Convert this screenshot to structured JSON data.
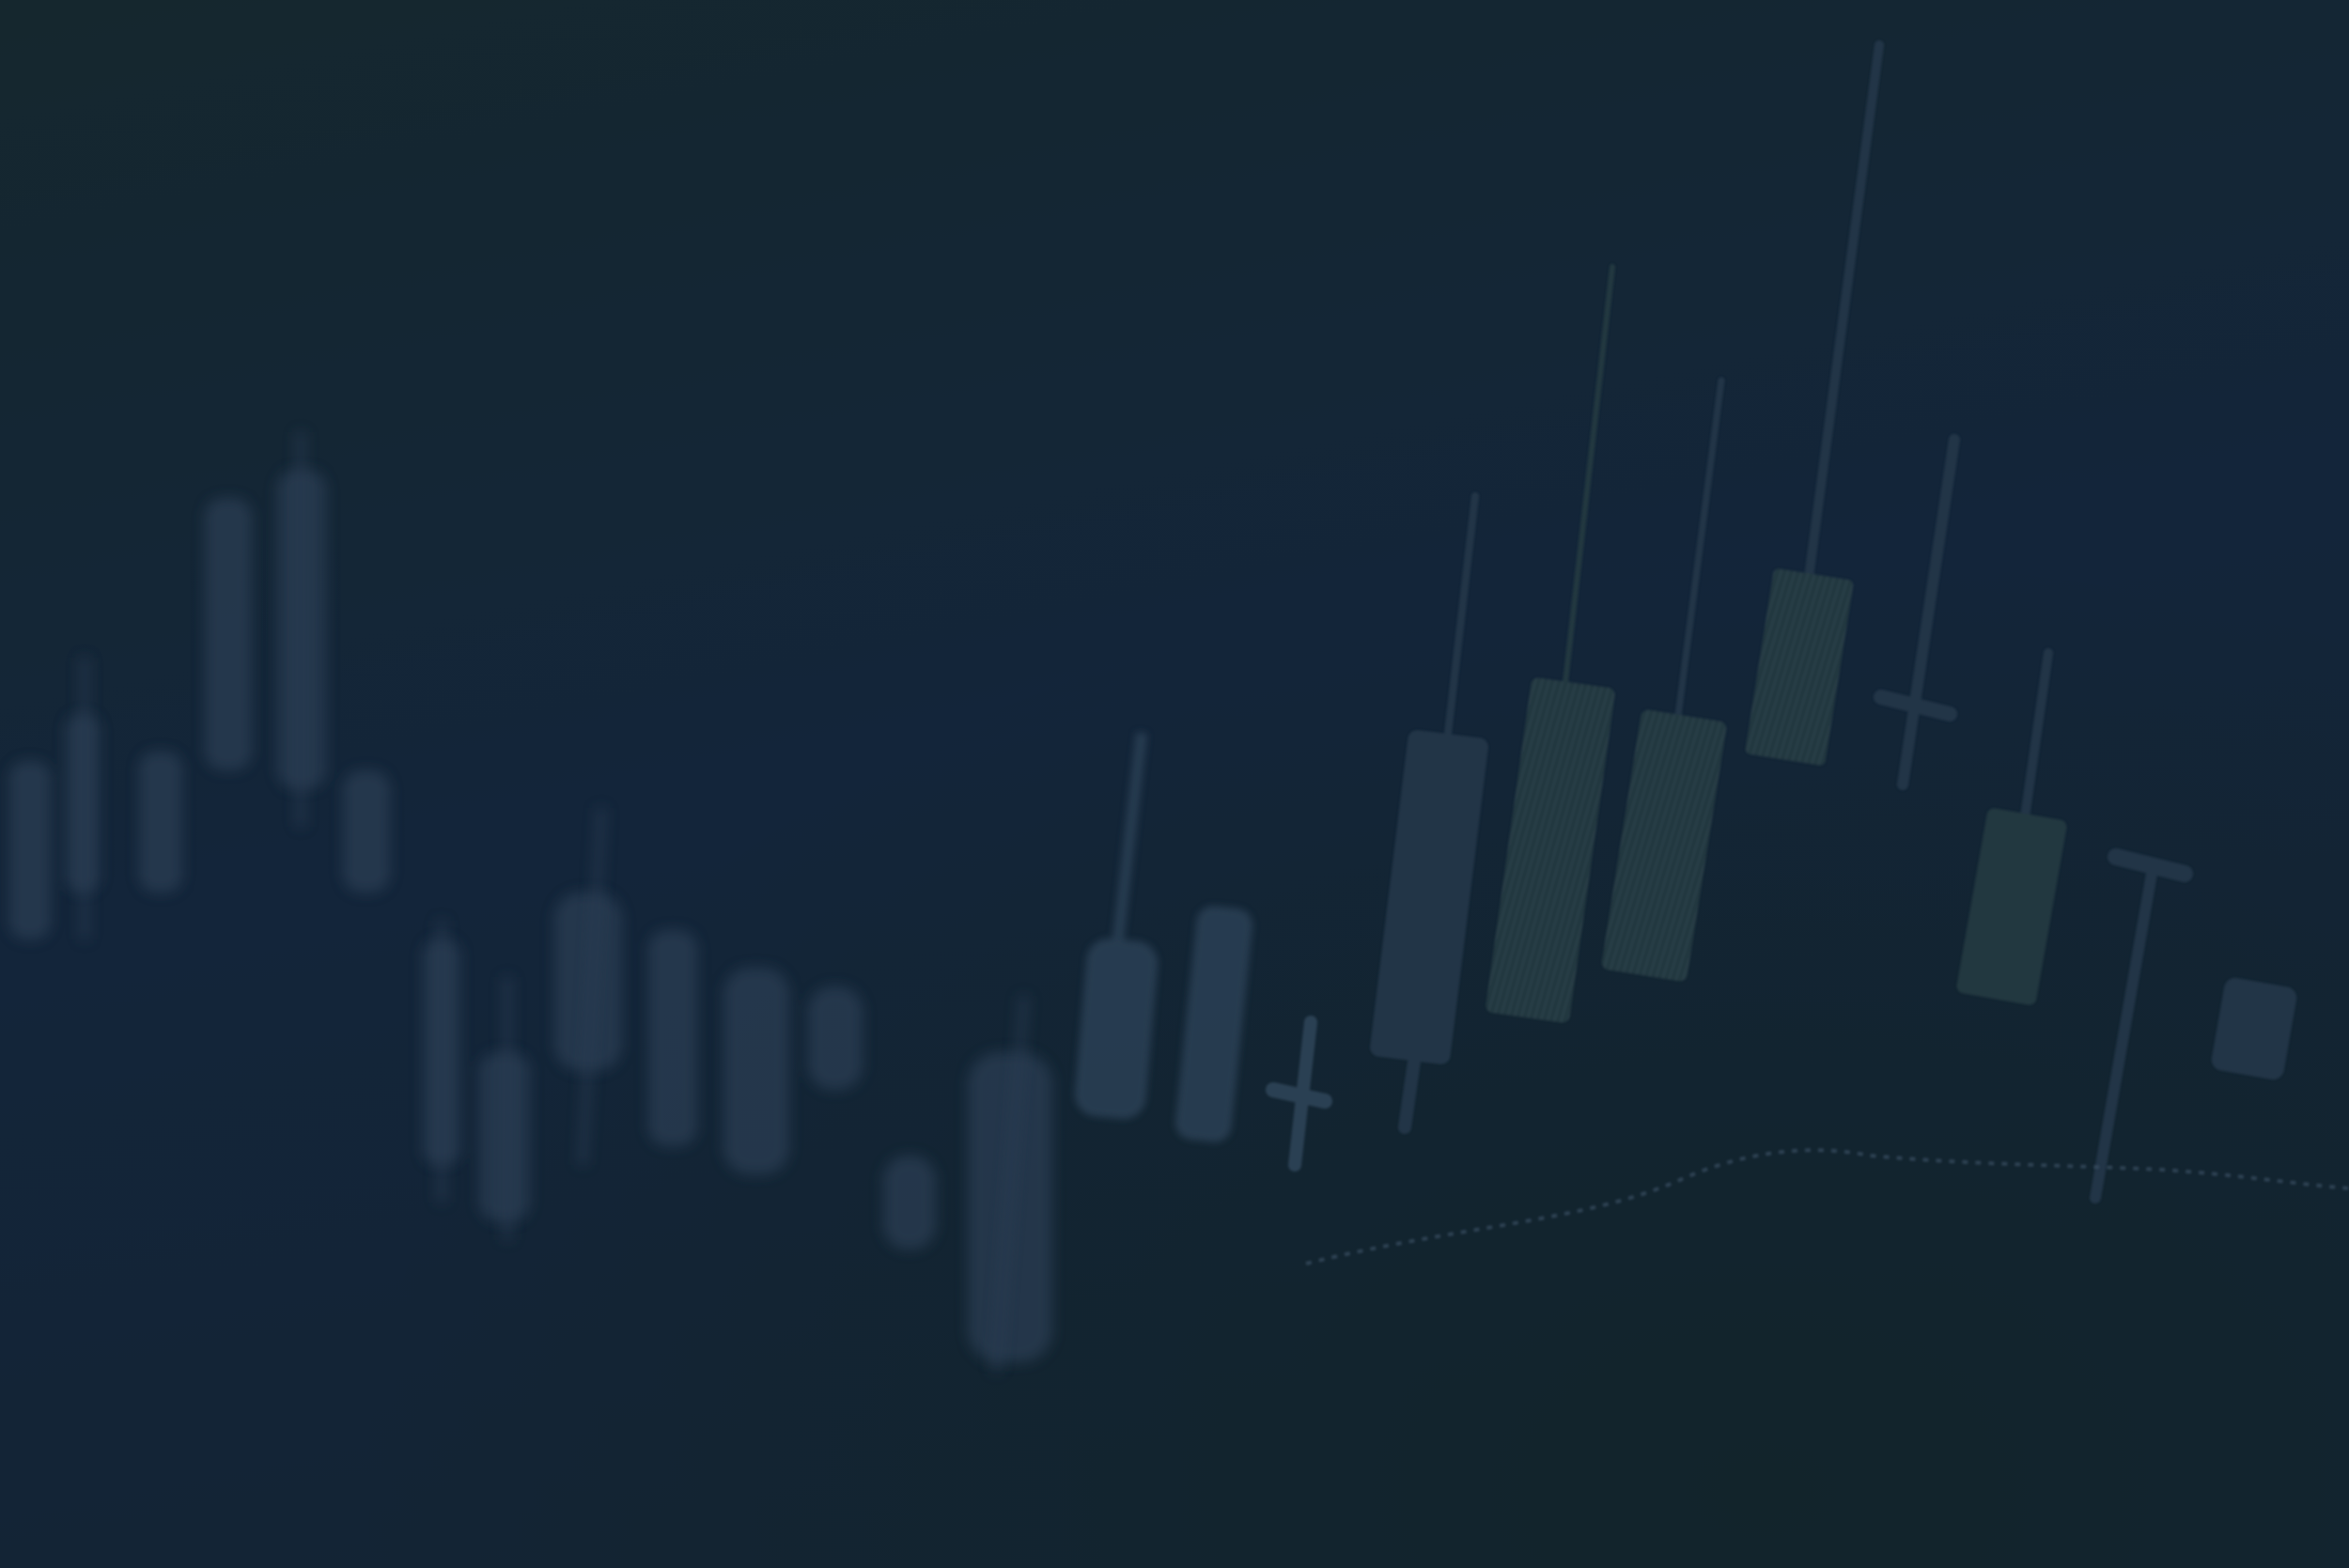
{
  "scene": {
    "subject": "candlestick-chart-photo",
    "colors": {
      "background_top": "#15272e",
      "background_mid": "#13253a",
      "background_bottom": "#132434",
      "candle_fill": "#213446",
      "candle_hatched": "#25383f",
      "blur_candle": "#2a3e52",
      "trend_line": "#3a4f63"
    }
  }
}
